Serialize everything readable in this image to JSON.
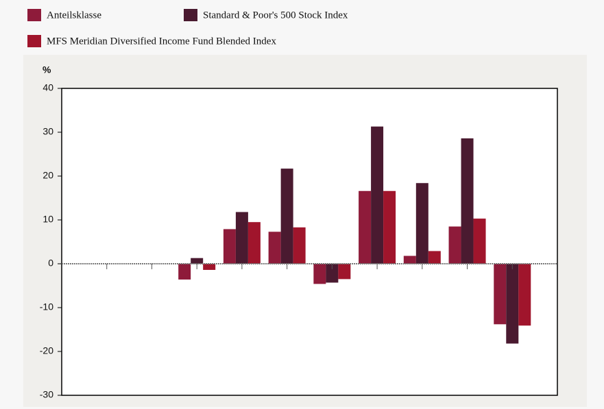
{
  "chart_data": {
    "type": "bar",
    "y_label": "%",
    "categories": [
      null,
      null,
      null,
      null,
      null,
      null,
      null,
      null,
      null,
      null
    ],
    "series": [
      {
        "name": "Anteilsklasse",
        "color": "#8e1b3a",
        "values": [
          null,
          null,
          -3.6,
          7.9,
          7.3,
          -4.6,
          16.6,
          1.8,
          8.5,
          -13.8
        ]
      },
      {
        "name": "Standard & Poor's 500 Stock Index",
        "color": "#4a1a30",
        "values": [
          null,
          null,
          1.3,
          11.8,
          21.7,
          -4.3,
          31.3,
          18.4,
          28.6,
          -18.2
        ]
      },
      {
        "name": "MFS Meridian Diversified Income Fund Blended Index",
        "color": "#a0152c",
        "values": [
          null,
          null,
          -1.4,
          9.5,
          8.3,
          -3.5,
          16.6,
          2.9,
          10.3,
          -14.1
        ]
      }
    ],
    "ylim": [
      -30,
      40
    ],
    "yticks": [
      -30,
      -20,
      -10,
      0,
      10,
      20,
      30,
      40
    ],
    "grid": false
  }
}
